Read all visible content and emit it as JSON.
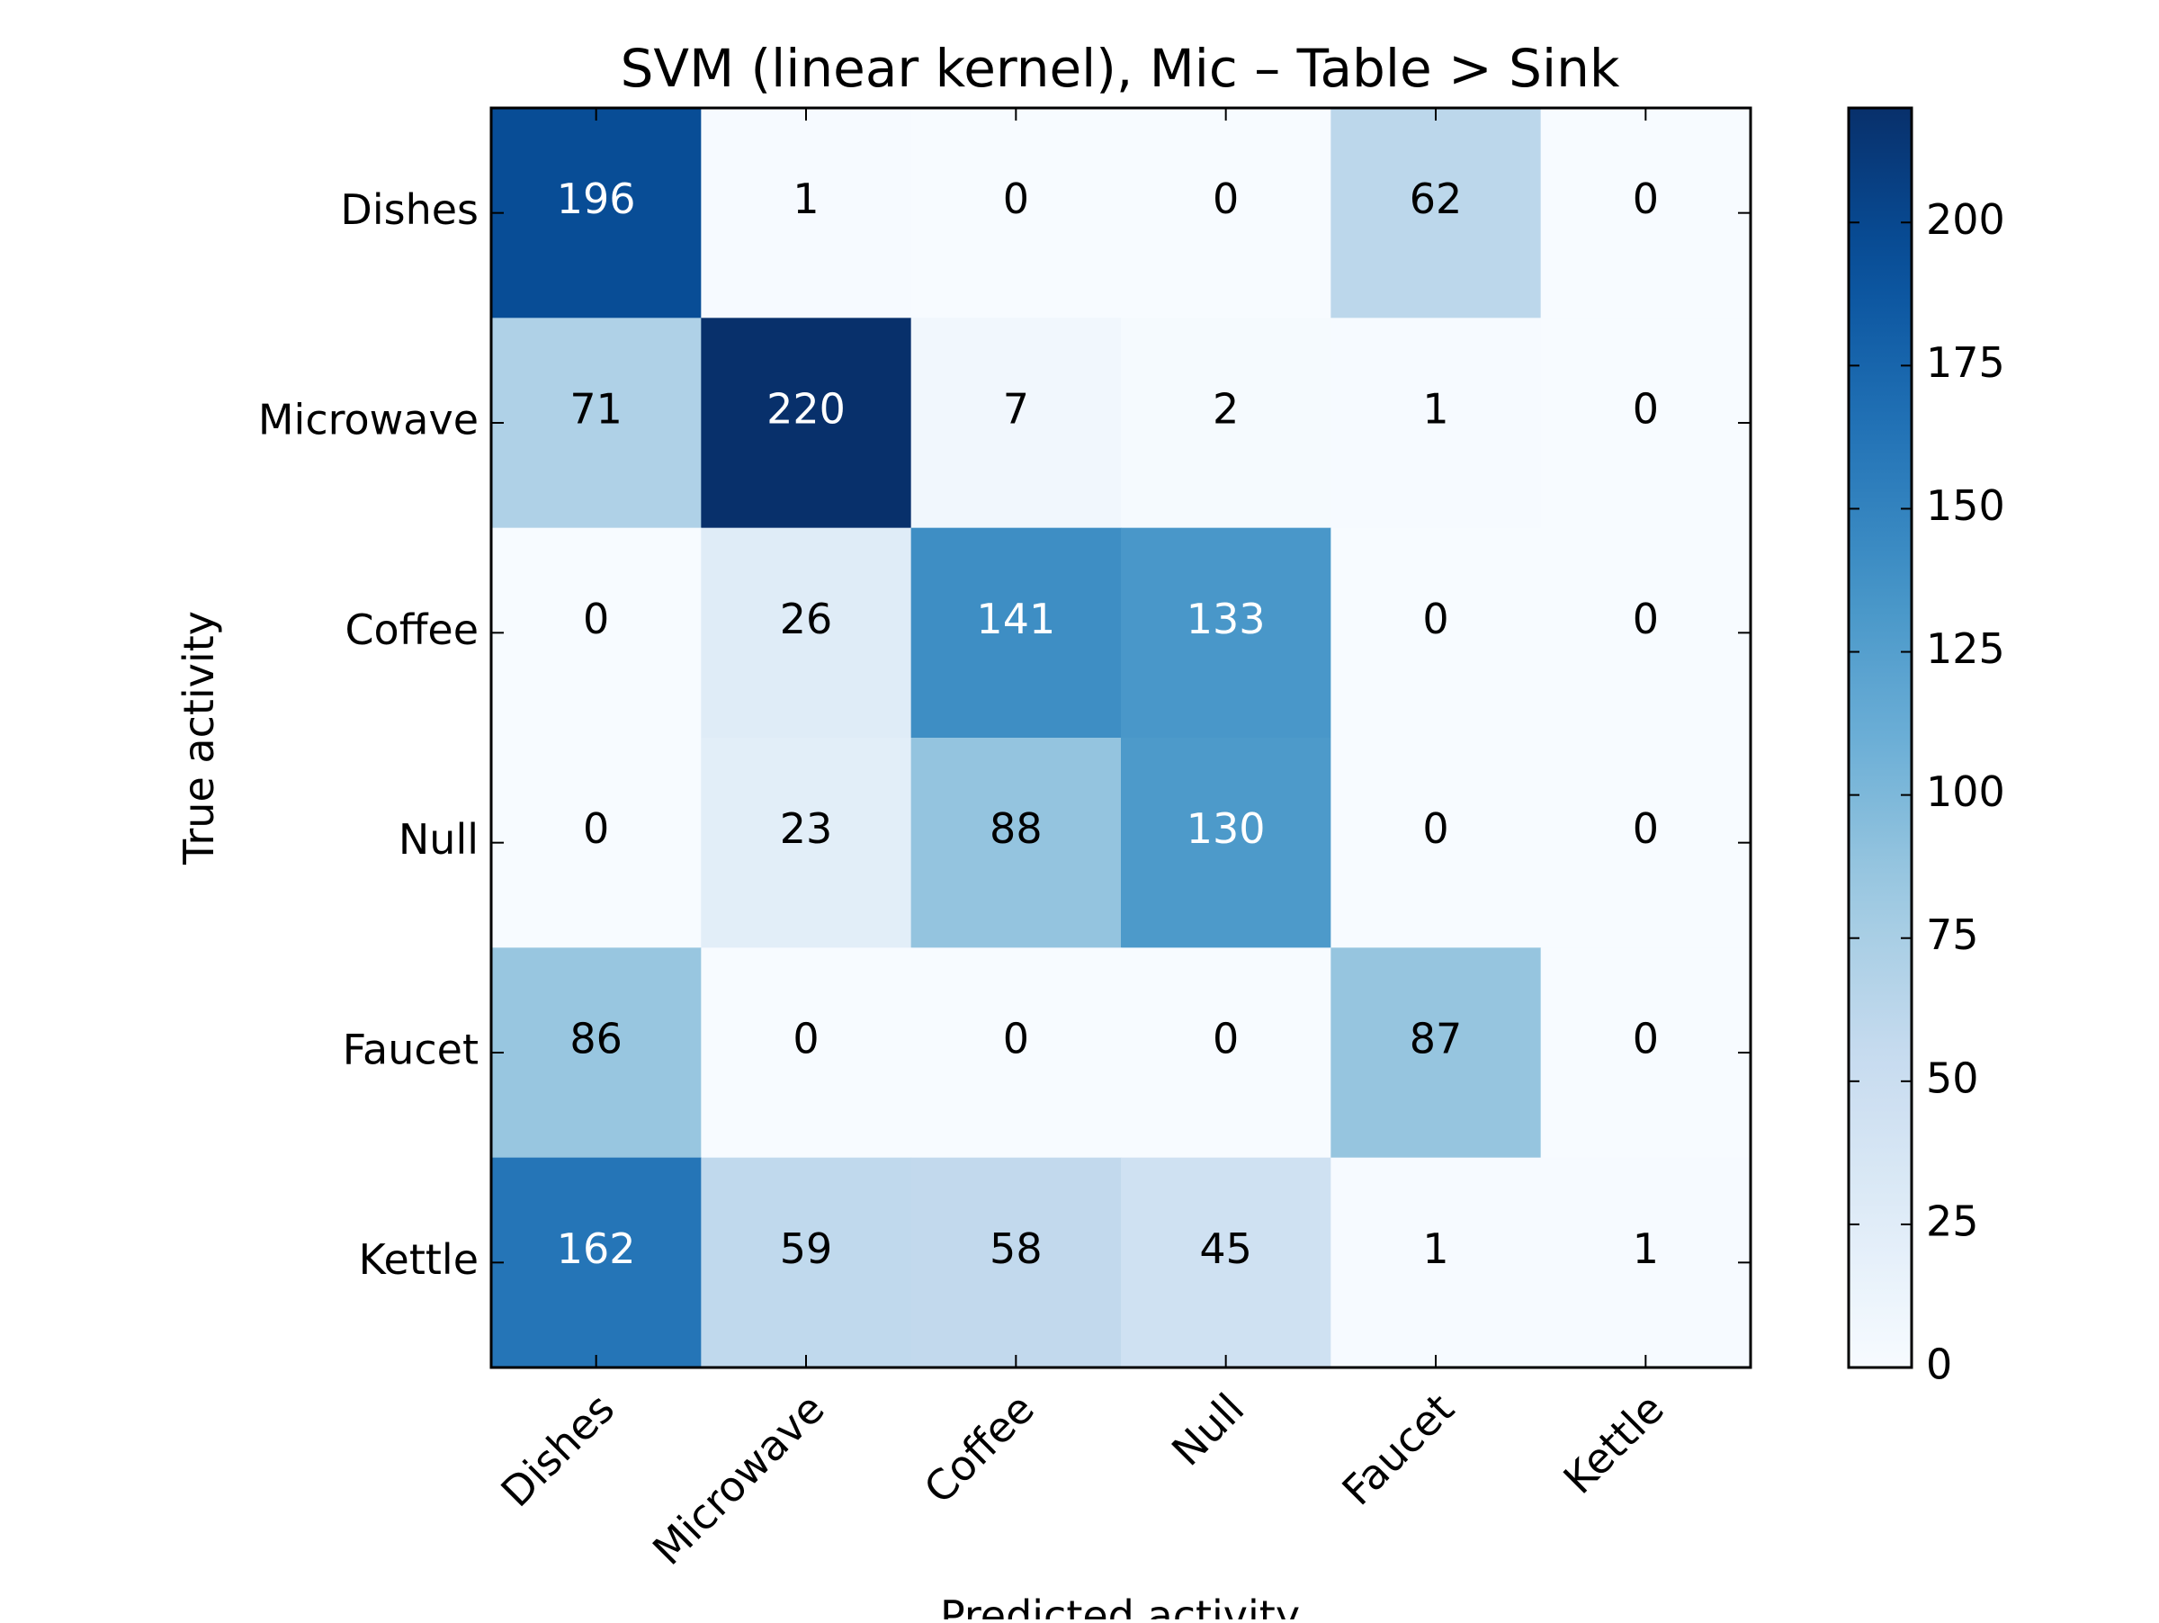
{
  "chart_data": {
    "type": "heatmap",
    "title": "SVM (linear kernel), Mic – Table > Sink",
    "xlabel": "Predicted activity",
    "ylabel": "True activity",
    "x_categories": [
      "Dishes",
      "Microwave",
      "Coffee",
      "Null",
      "Faucet",
      "Kettle"
    ],
    "y_categories": [
      "Dishes",
      "Microwave",
      "Coffee",
      "Null",
      "Faucet",
      "Kettle"
    ],
    "values": [
      [
        196,
        1,
        0,
        0,
        62,
        0
      ],
      [
        71,
        220,
        7,
        2,
        1,
        0
      ],
      [
        0,
        26,
        141,
        133,
        0,
        0
      ],
      [
        0,
        23,
        88,
        130,
        0,
        0
      ],
      [
        86,
        0,
        0,
        0,
        87,
        0
      ],
      [
        162,
        59,
        58,
        45,
        1,
        1
      ]
    ],
    "colorscale": "Blues",
    "vmin": 0,
    "vmax": 220,
    "colorbar_ticks": [
      0,
      25,
      50,
      75,
      100,
      125,
      150,
      175,
      200
    ],
    "grid": false
  }
}
